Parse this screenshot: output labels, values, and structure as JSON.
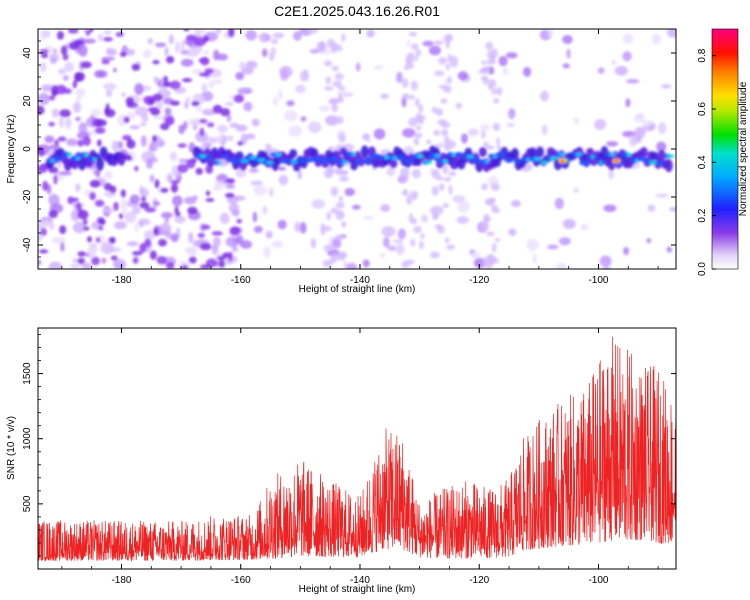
{
  "title": "C2E1.2025.043.16.26.R01",
  "chart_data": [
    {
      "type": "heatmap",
      "xlabel": "Height of straight line (km)",
      "ylabel": "Frequency (Hz)",
      "xlim": [
        -194,
        -87
      ],
      "ylim": [
        -50,
        50
      ],
      "xticks": [
        -180,
        -160,
        -140,
        -120,
        -100
      ],
      "yticks": [
        -40,
        -20,
        0,
        20,
        40
      ],
      "colorbar": {
        "label": "Normalized spectral amplitude",
        "range": [
          0,
          0.9
        ],
        "ticks": [
          0.0,
          0.2,
          0.4,
          0.6,
          0.8
        ],
        "colormap": "rainbow (violet → red)"
      },
      "ridge_band": {
        "frequency_center_hz": -4,
        "start_km": -192,
        "gap_km": [
          -180,
          -168
        ],
        "peak_points_km": [
          -106,
          -97
        ]
      }
    },
    {
      "type": "line",
      "xlabel": "Height of straight line (km)",
      "ylabel": "SNR (10 * v/v)",
      "xlim": [
        -194,
        -87
      ],
      "ylim": [
        0,
        1850
      ],
      "xticks": [
        -180,
        -160,
        -140,
        -120,
        -100
      ],
      "yticks": [
        500,
        1000,
        1500
      ],
      "series": [
        {
          "color": "#ee2222",
          "envelope": {
            "x": [
              -194,
              -170,
              -164,
              -158,
              -155,
              -150,
              -145,
              -140,
              -136,
              -133,
              -130,
              -126,
              -122,
              -118,
              -115,
              -113,
              -110,
              -106,
              -102,
              -98,
              -95,
              -92,
              -90,
              -88,
              -87
            ],
            "base": [
              180,
              180,
              190,
              200,
              220,
              280,
              260,
              260,
              430,
              430,
              250,
              230,
              230,
              240,
              260,
              380,
              450,
              500,
              520,
              620,
              600,
              650,
              560,
              560,
              560
            ],
            "peak": [
              380,
              370,
              420,
              420,
              700,
              860,
              690,
              560,
              1080,
              1070,
              520,
              620,
              690,
              620,
              700,
              980,
              1160,
              1300,
              1420,
              1800,
              1700,
              1560,
              1560,
              1400,
              1400
            ]
          }
        }
      ]
    }
  ]
}
